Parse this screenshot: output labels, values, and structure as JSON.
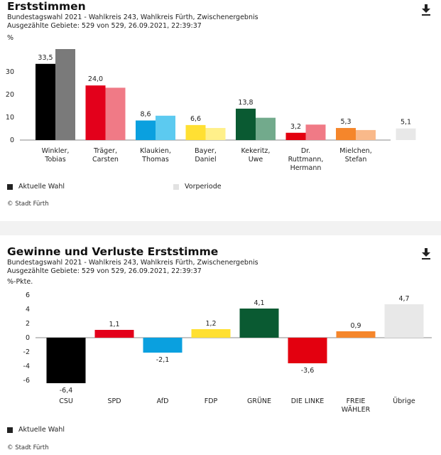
{
  "colors": {
    "CSU": "#000000",
    "CSU_prev": "#7a7a7a",
    "SPD": "#e3001b",
    "SPD_prev": "#f07a86",
    "AfD": "#0aa0df",
    "AfD_prev": "#5ccaf0",
    "FDP": "#ffe033",
    "FDP_prev": "#fff08a",
    "GRUENE": "#0a5a32",
    "GRUENE_prev": "#72aa8c",
    "LINKE": "#e3000f",
    "LINKE_prev": "#f07a86",
    "FW": "#f5862b",
    "FW_prev": "#f9b98a",
    "other": "#e8e8e8",
    "other_prev": "#e8e8e8"
  },
  "panel1": {
    "title": "Erststimmen",
    "subtitle1": "Bundestagswahl 2021 - Wahlkreis 243, Wahlkreis Fürth, Zwischenergebnis",
    "subtitle2": "Ausgezählte Gebiete: 529 von 529, 26.09.2021, 22:39:37",
    "unit": "%",
    "legend_current": "Aktuelle Wahl",
    "legend_previous": "Vorperiode",
    "credit": "© Stadt Fürth",
    "download_icon": "download-icon"
  },
  "panel2": {
    "title": "Gewinne und Verluste Erststimme",
    "subtitle1": "Bundestagswahl 2021 - Wahlkreis 243, Wahlkreis Fürth, Zwischenergebnis",
    "subtitle2": "Ausgezählte Gebiete: 529 von 529, 26.09.2021, 22:39:37",
    "unit": "%-Pkte.",
    "legend_current": "Aktuelle Wahl",
    "credit": "© Stadt Fürth",
    "download_icon": "download-icon"
  },
  "chart_data": [
    {
      "type": "bar",
      "title": "Erststimmen",
      "ylabel": "%",
      "ylim": [
        0,
        40
      ],
      "yticks": [
        0,
        10,
        20,
        30
      ],
      "categories": [
        [
          "Winkler,",
          "Tobias"
        ],
        [
          "Träger,",
          "Carsten"
        ],
        [
          "Klaukien,",
          "Thomas"
        ],
        [
          "Bayer,",
          "Daniel"
        ],
        [
          "Kekeritz,",
          "Uwe"
        ],
        [
          "Dr.",
          "Ruttmann,",
          "Hermann"
        ],
        [
          "Mielchen,",
          "Stefan"
        ],
        [
          ""
        ]
      ],
      "category_colors": [
        "CSU",
        "SPD",
        "AfD",
        "FDP",
        "GRUENE",
        "LINKE",
        "FW",
        "other"
      ],
      "series": [
        {
          "name": "Aktuelle Wahl",
          "values": [
            33.5,
            24.0,
            8.6,
            6.6,
            13.8,
            3.2,
            5.3,
            5.1
          ],
          "labels": [
            "33,5",
            "24,0",
            "8,6",
            "6,6",
            "13,8",
            "3,2",
            "5,3",
            "5,1"
          ]
        },
        {
          "name": "Vorperiode",
          "values": [
            40.0,
            23.0,
            10.7,
            5.3,
            9.8,
            6.8,
            4.4,
            null
          ]
        }
      ],
      "grid": false,
      "legend": "bottom"
    },
    {
      "type": "bar",
      "title": "Gewinne und Verluste Erststimme",
      "ylabel": "%-Pkte.",
      "ylim": [
        -6.5,
        6.5
      ],
      "yticks": [
        6,
        4,
        2,
        0,
        -2,
        -4,
        -6
      ],
      "categories": [
        "CSU",
        "SPD",
        "AfD",
        "FDP",
        "GRÜNE",
        "DIE LINKE",
        [
          "FREIE",
          "WÄHLER"
        ],
        "Übrige"
      ],
      "category_colors": [
        "CSU",
        "SPD",
        "AfD",
        "FDP",
        "GRUENE",
        "LINKE",
        "FW",
        "other"
      ],
      "series": [
        {
          "name": "Aktuelle Wahl",
          "values": [
            -6.4,
            1.1,
            -2.1,
            1.2,
            4.1,
            -3.6,
            0.9,
            4.7
          ],
          "labels": [
            "-6,4",
            "1,1",
            "-2,1",
            "1,2",
            "4,1",
            "-3,6",
            "0,9",
            "4,7"
          ]
        }
      ],
      "grid": false,
      "legend": "bottom"
    }
  ]
}
